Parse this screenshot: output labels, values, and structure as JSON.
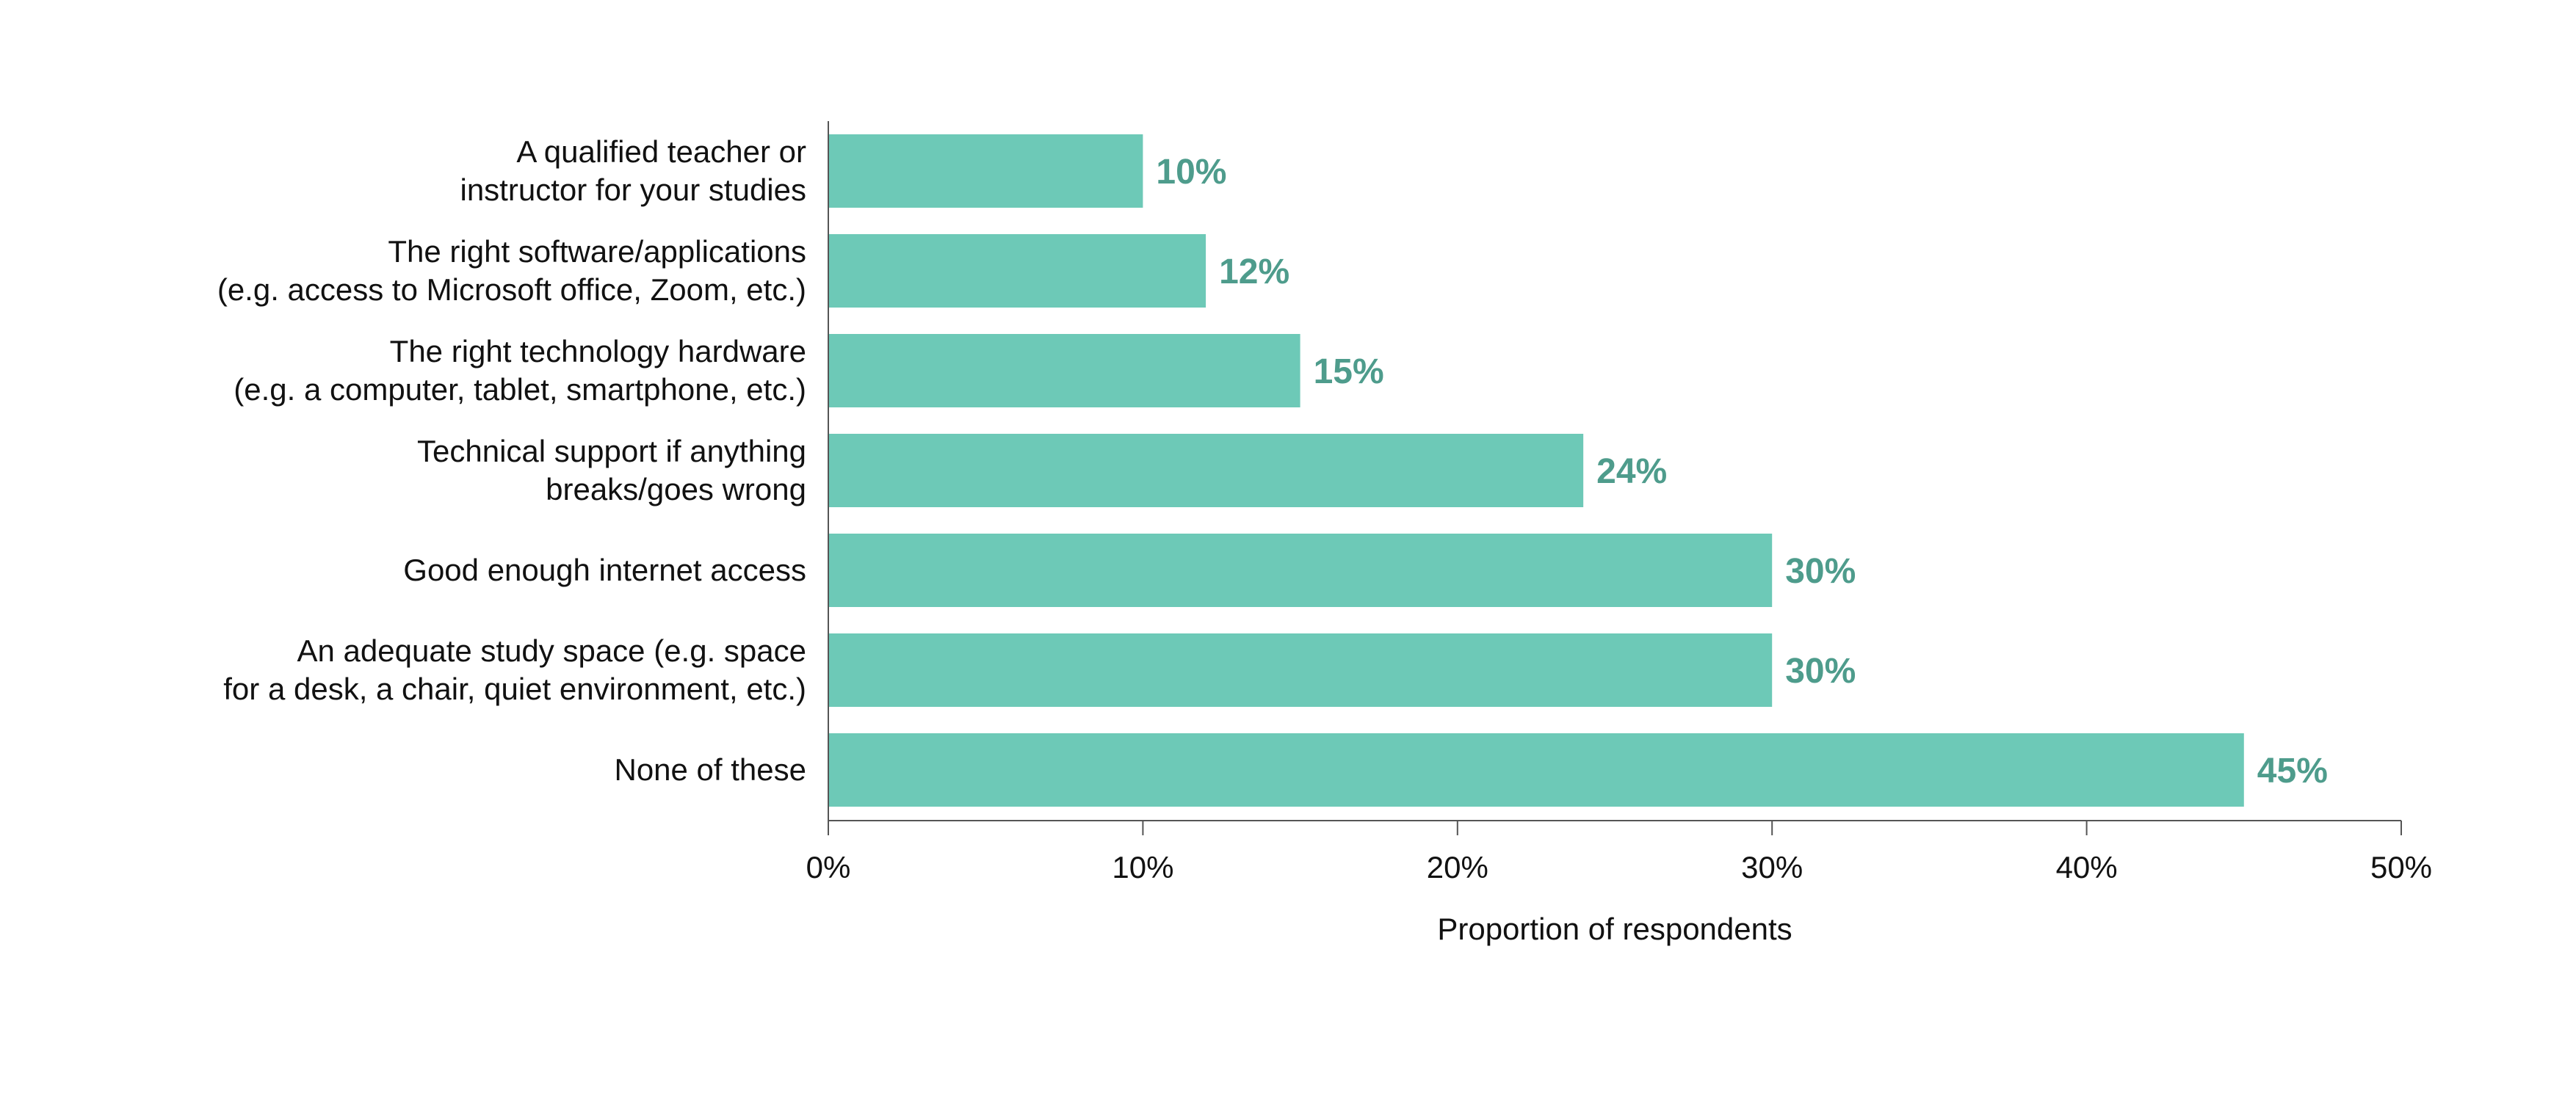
{
  "chart_data": {
    "type": "bar",
    "orientation": "horizontal",
    "categories": [
      [
        "A qualified teacher or",
        "instructor for your studies"
      ],
      [
        "The right software/applications",
        "(e.g. access to Microsoft office, Zoom, etc.)"
      ],
      [
        "The right technology hardware",
        "(e.g. a computer, tablet, smartphone, etc.)"
      ],
      [
        "Technical support if anything",
        "breaks/goes wrong"
      ],
      [
        "Good enough internet access"
      ],
      [
        "An adequate study space (e.g. space",
        "for a desk, a chair, quiet environment, etc.)"
      ],
      [
        "None of these"
      ]
    ],
    "values": [
      10,
      12,
      15,
      24,
      30,
      30,
      45
    ],
    "data_labels": [
      "10%",
      "12%",
      "15%",
      "24%",
      "30%",
      "30%",
      "45%"
    ],
    "xlabel": "Proportion of respondents",
    "ylabel": "",
    "title": "",
    "xlim": [
      0,
      50
    ],
    "xticks": [
      0,
      10,
      20,
      30,
      40,
      50
    ],
    "xtick_labels": [
      "0%",
      "10%",
      "20%",
      "30%",
      "40%",
      "50%"
    ],
    "grid": false,
    "legend": "none",
    "colors": {
      "bar": "#6DC9B7",
      "data_label": "#4E9C8C",
      "axis": "#555555",
      "text": "#111111"
    }
  }
}
